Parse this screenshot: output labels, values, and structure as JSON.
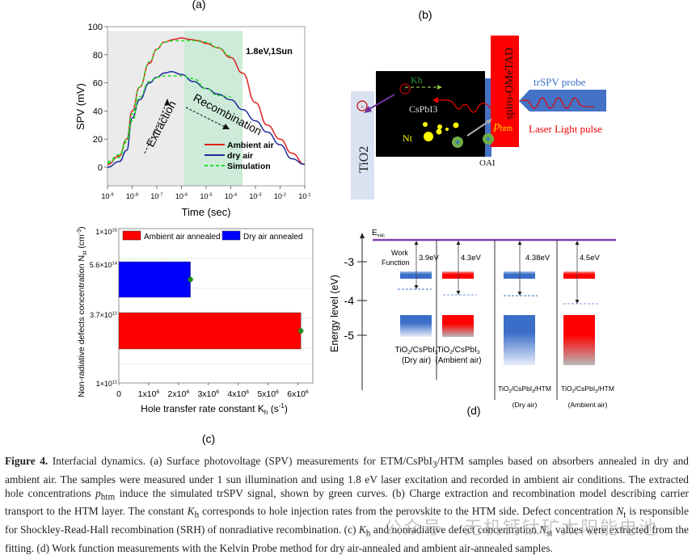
{
  "figure": {
    "panel_labels": {
      "a": "(a)",
      "b": "(b)",
      "c": "(c)",
      "d": "(d)"
    }
  },
  "chart_data": [
    {
      "id": "a",
      "type": "line",
      "title": "",
      "xlabel": "Time (sec)",
      "ylabel": "SPV (mV)",
      "xscale": "log",
      "xlim": [
        1e-09,
        0.1
      ],
      "ylim": [
        -12,
        100
      ],
      "xticks": [
        1e-09,
        1e-08,
        1e-07,
        1e-06,
        1e-05,
        0.0001,
        0.001,
        0.01,
        0.1
      ],
      "xtick_labels": [
        "10-9",
        "10-8",
        "10-7",
        "10-6",
        "10-5",
        "10-4",
        "10-3",
        "10-2",
        "10-1"
      ],
      "yticks": [
        0,
        20,
        40,
        60,
        80,
        100
      ],
      "ytick_labels": [
        "0",
        "20",
        "40",
        "60",
        "80",
        "100"
      ],
      "annotation": "1.8eV,1Sun",
      "regions": [
        {
          "name": "Extraction",
          "from": 1e-09,
          "to": 1.3e-06,
          "color": "#ebebeb"
        },
        {
          "name": "Recombination",
          "from": 1.3e-06,
          "to": 0.0003,
          "color": "#cdebd8"
        }
      ],
      "arrow_labels": [
        "Extraction",
        "Recombination"
      ],
      "legend_position": "bottom-right",
      "series": [
        {
          "name": "Ambient air",
          "color": "#e02020",
          "style": "solid",
          "x": [
            1e-09,
            3e-09,
            6e-09,
            1e-08,
            2e-08,
            5e-08,
            1e-07,
            2e-07,
            5e-07,
            1e-06,
            2e-06,
            5e-06,
            1e-05,
            3e-05,
            0.0001,
            0.0003,
            0.001,
            0.003,
            0.01,
            0.03,
            0.1
          ],
          "y": [
            2,
            8,
            20,
            40,
            57,
            74,
            84,
            89,
            91,
            92,
            91,
            90,
            88,
            85,
            78,
            67,
            46,
            30,
            20,
            10,
            2
          ]
        },
        {
          "name": "dry air",
          "color": "#1a2a9a",
          "style": "solid",
          "x": [
            1e-09,
            3e-09,
            6e-09,
            1e-08,
            2e-08,
            5e-08,
            1e-07,
            2e-07,
            4e-07,
            1e-06,
            3e-06,
            1e-05,
            3e-05,
            0.0001,
            0.0003,
            0.001,
            0.003,
            0.01,
            0.03,
            0.1
          ],
          "y": [
            0,
            4,
            12,
            35,
            48,
            60,
            64,
            67,
            68,
            66,
            61,
            56,
            52,
            48,
            41,
            33,
            25,
            16,
            6,
            2
          ]
        },
        {
          "name": "Simulation",
          "color": "#22dd22",
          "style": "dashed",
          "x": [
            1e-09,
            3e-09,
            6e-09,
            1e-08,
            2e-08,
            5e-08,
            1e-07,
            2e-07,
            5e-07,
            1e-06,
            3e-06,
            1e-05,
            3e-05,
            0.0001
          ],
          "y": [
            4,
            9,
            20,
            38,
            57,
            75,
            84,
            89,
            90,
            90,
            90,
            89,
            85,
            79
          ]
        },
        {
          "name": "Simulation (dry air fit)",
          "color": "#22dd22",
          "style": "dashed",
          "legend": false,
          "x": [
            1e-09,
            3e-09,
            6e-09,
            1e-08,
            2e-08,
            5e-08,
            1e-07,
            2e-07,
            5e-07,
            1e-06,
            3e-06,
            1e-05,
            3e-05,
            0.0001
          ],
          "y": [
            3,
            7,
            18,
            33,
            50,
            61,
            64,
            65,
            65,
            65,
            63,
            56,
            51,
            50
          ]
        }
      ]
    },
    {
      "id": "c",
      "type": "bar",
      "orientation": "horizontal",
      "xlabel": "Hole transfer rate constant Kh (s-1)",
      "ylabel": "Non-radiative defects concentration Nst (cm-3)",
      "xlim": [
        0,
        6500000.0
      ],
      "xticks": [
        0,
        1000000.0,
        2000000.0,
        3000000.0,
        4000000.0,
        5000000.0,
        6000000.0
      ],
      "xtick_labels": [
        "0",
        "1x10^6",
        "2x10^6",
        "3x10^6",
        "4x10^6",
        "5x10^6",
        "6x10^6"
      ],
      "ytick_labels": [
        "1×10^15",
        "5.6×10^14",
        "3.7×10^11",
        "1×10^11"
      ],
      "grid": true,
      "legend_position": "top",
      "categories": [
        "Dry air annealed",
        "Ambient air annealed"
      ],
      "series": [
        {
          "name": "Ambient air annealed",
          "color": "#ff0000",
          "kh": 6100000.0,
          "nst_label": "3.7×10^11"
        },
        {
          "name": "Dry air annealed",
          "color": "#0000ff",
          "kh": 2400000.0,
          "nst_label": "5.6×10^14"
        }
      ],
      "marker_color": "#1e8c1e"
    },
    {
      "id": "d",
      "type": "diagram",
      "ylabel": "Energy level (eV)",
      "yticks": [
        -3,
        -4,
        -5
      ],
      "ytick_labels": [
        "-3",
        "-4",
        "-5"
      ],
      "evac_label": "Evac",
      "evac_color": "#8040b0",
      "work_function_label": [
        "Work",
        "Function"
      ],
      "columns": [
        {
          "label": [
            "TiO2/CsPbI3",
            "(Dry air)"
          ],
          "work_function_eV": 3.9,
          "wf_label": "3.9eV",
          "color": "#3a6ec8",
          "with_htm": false
        },
        {
          "label": [
            "TiO2/CsPbI3",
            "(Ambient air)"
          ],
          "work_function_eV": 4.3,
          "wf_label": "4.3eV",
          "color": "#ff0000",
          "with_htm": false
        },
        {
          "label": [
            "TiO2/CsPbI3/HTM",
            "(Dry air)"
          ],
          "work_function_eV": 4.38,
          "wf_label": "4.38eV",
          "color": "#3a6ec8",
          "with_htm": true
        },
        {
          "label": [
            "TiO2/CsPbI3/HTM",
            "(Ambient air)"
          ],
          "work_function_eV": 4.5,
          "wf_label": "4.5eV",
          "color": "#ff0000",
          "with_htm": true
        }
      ]
    }
  ],
  "diagram_b": {
    "tio2_label": "TiO2",
    "cspbi3_label": "CsPbI3",
    "nt_label": "Nt",
    "kh_label": "Kh",
    "phtm_label": "phtm",
    "oai_label": "OAI",
    "spiro_label": "spiro-OMeTAD",
    "probe_label": "trSPV probe",
    "laser_label": "Laser Light pulse",
    "electron_symbol": "-",
    "hole_symbol": "+",
    "colors": {
      "tio2": "#d9e2f1",
      "perovskite": "#000000",
      "oai": "#4472c4",
      "spiro": "#ff0000",
      "probe": "#4472c4",
      "kh": "#2e9a3a",
      "phtm": "#ffd700",
      "defects": "#ffff00",
      "hole": "#70ad47",
      "arrow": "#7030a0"
    }
  },
  "caption": {
    "label": "Figure 4.",
    "text_a": " Interfacial dynamics. (a) Surface photovoltage (SPV) measurements for ETM/CsPbI",
    "text_b": "/HTM samples based on absorbers annealed in dry and ambient air. The samples were measured under 1 sun illumination and using 1.8 eV laser excitation and recorded in ambient air conditions. The extracted hole concentrations ",
    "text_c": " induce the simulated trSPV signal, shown by green curves. (b) Charge extraction and recombination model describing carrier transport to the HTM layer. The constant ",
    "text_d": " corresponds to hole injection rates from the perovskite to the HTM side. Defect concentration ",
    "text_e": " is responsible for Shockley-Read-Hall recombination (SRH) of nonradiative recombination. (c) ",
    "text_f": " and nonradiative defect concentration ",
    "text_g": " values were extracted from the fitting. (d) Work function measurements with the Kelvin Probe method for dry air-annealed and ambient air-annealed samples.",
    "sub_3": "3",
    "p": "p",
    "htm": "htm",
    "K": "K",
    "h": "h",
    "N": "N",
    "t": "t",
    "st": "st"
  },
  "watermark": "公众号 · 无机钙钛矿太阳能电池"
}
